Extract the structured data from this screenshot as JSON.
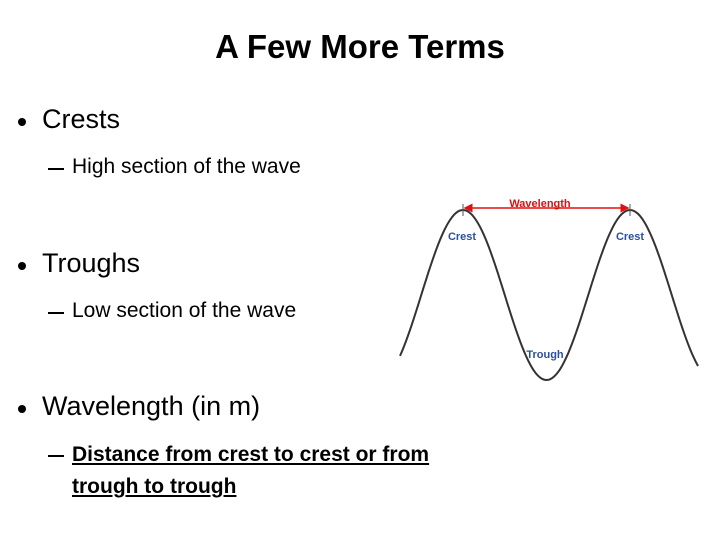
{
  "title": "A Few More Terms",
  "bullets": [
    {
      "text": "Crests",
      "sub": "High section of the wave"
    },
    {
      "text": "Troughs",
      "sub": "Low section of the wave"
    },
    {
      "text": "Wavelength (in m)",
      "sub": "Distance from crest to crest or from trough to trough"
    }
  ],
  "diagram": {
    "wavelength_label": "Wavelength",
    "crest_labels": [
      "Crest",
      "Crest"
    ],
    "trough_label": "Trough"
  }
}
